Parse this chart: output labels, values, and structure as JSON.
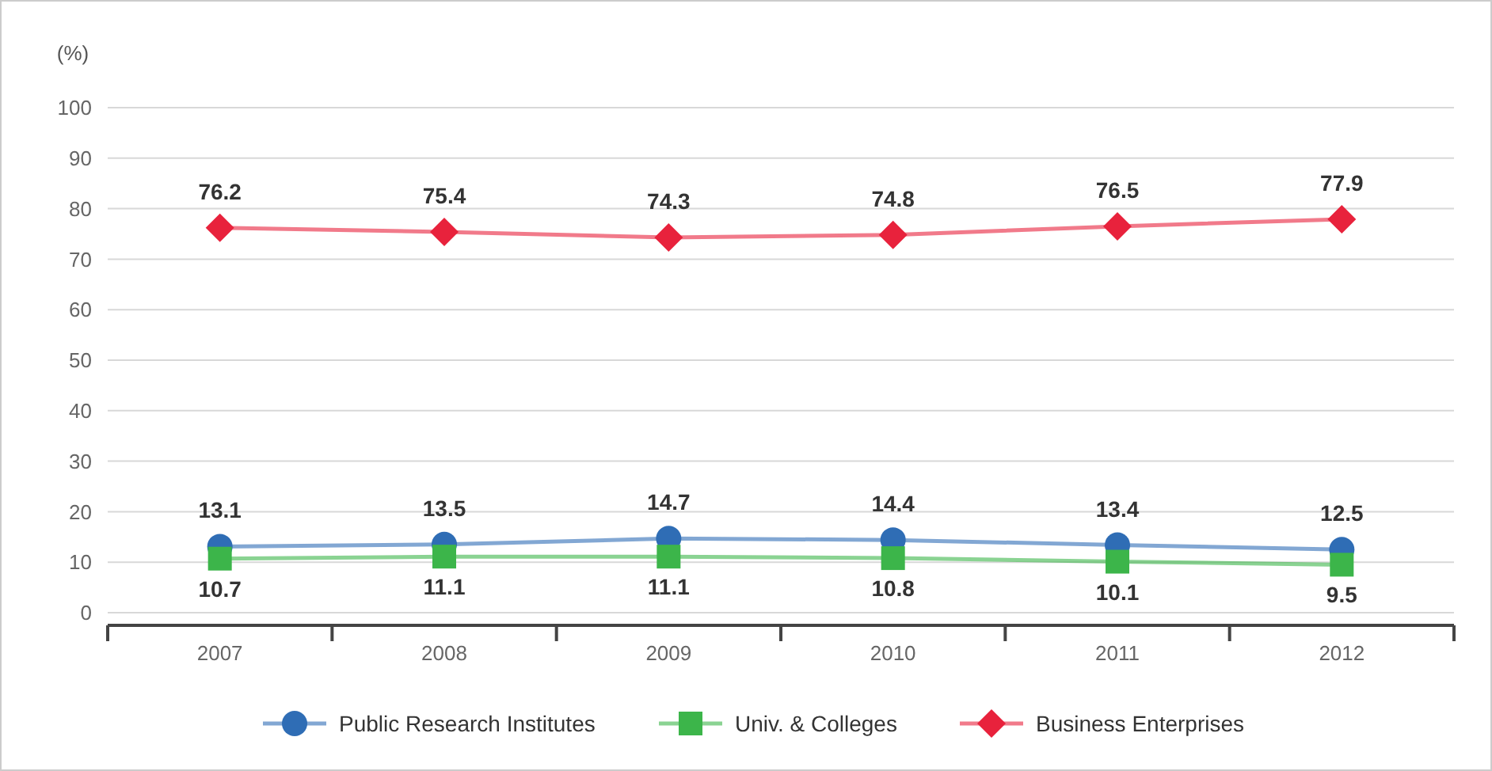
{
  "chart_data": {
    "type": "line",
    "ylabel": "(%)",
    "categories": [
      "2007",
      "2008",
      "2009",
      "2010",
      "2011",
      "2012"
    ],
    "series": [
      {
        "name": "Public Research Institutes",
        "color": "#2f6db5",
        "values": [
          13.1,
          13.5,
          14.7,
          14.4,
          13.4,
          12.5
        ],
        "marker": "circle"
      },
      {
        "name": "Univ. & Colleges",
        "color": "#3cb54a",
        "values": [
          10.7,
          11.1,
          11.1,
          10.8,
          10.1,
          9.5
        ],
        "marker": "square"
      },
      {
        "name": "Business Enterprises",
        "color": "#e8223c",
        "values": [
          76.2,
          75.4,
          74.3,
          74.8,
          76.5,
          77.9
        ],
        "marker": "diamond"
      }
    ],
    "ylim": [
      0,
      100
    ],
    "yticks": [
      0,
      10,
      20,
      30,
      40,
      50,
      60,
      70,
      80,
      90,
      100
    ],
    "grid": "y",
    "legend": "bottom",
    "data_labels": true
  }
}
